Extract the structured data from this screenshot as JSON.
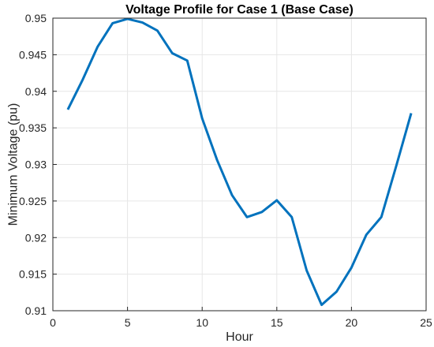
{
  "chart_data": {
    "type": "line",
    "title": "Voltage Profile for Case 1 (Base Case)",
    "xlabel": "Hour",
    "ylabel": "Minimum Voltage (pu)",
    "xlim": [
      0,
      25
    ],
    "ylim": [
      0.91,
      0.95
    ],
    "x_ticks": [
      0,
      5,
      10,
      15,
      20,
      25
    ],
    "y_ticks": [
      0.91,
      0.915,
      0.92,
      0.925,
      0.93,
      0.935,
      0.94,
      0.945,
      0.95
    ],
    "x_tick_labels": [
      "0",
      "5",
      "10",
      "15",
      "20",
      "25"
    ],
    "y_tick_labels": [
      "0.91",
      "0.915",
      "0.92",
      "0.925",
      "0.93",
      "0.935",
      "0.94",
      "0.945",
      "0.95"
    ],
    "grid": true,
    "series": [
      {
        "color": "#0072BD",
        "x": [
          1,
          2,
          3,
          4,
          5,
          6,
          7,
          8,
          9,
          10,
          11,
          12,
          13,
          14,
          15,
          16,
          17,
          18,
          19,
          20,
          21,
          22,
          23,
          24
        ],
        "y": [
          0.9375,
          0.9416,
          0.9461,
          0.9493,
          0.9499,
          0.9494,
          0.9483,
          0.9452,
          0.9442,
          0.9363,
          0.9306,
          0.9258,
          0.9228,
          0.9235,
          0.9251,
          0.9228,
          0.9155,
          0.9108,
          0.9126,
          0.9159,
          0.9204,
          0.9228,
          0.9298,
          0.937
        ]
      }
    ]
  }
}
